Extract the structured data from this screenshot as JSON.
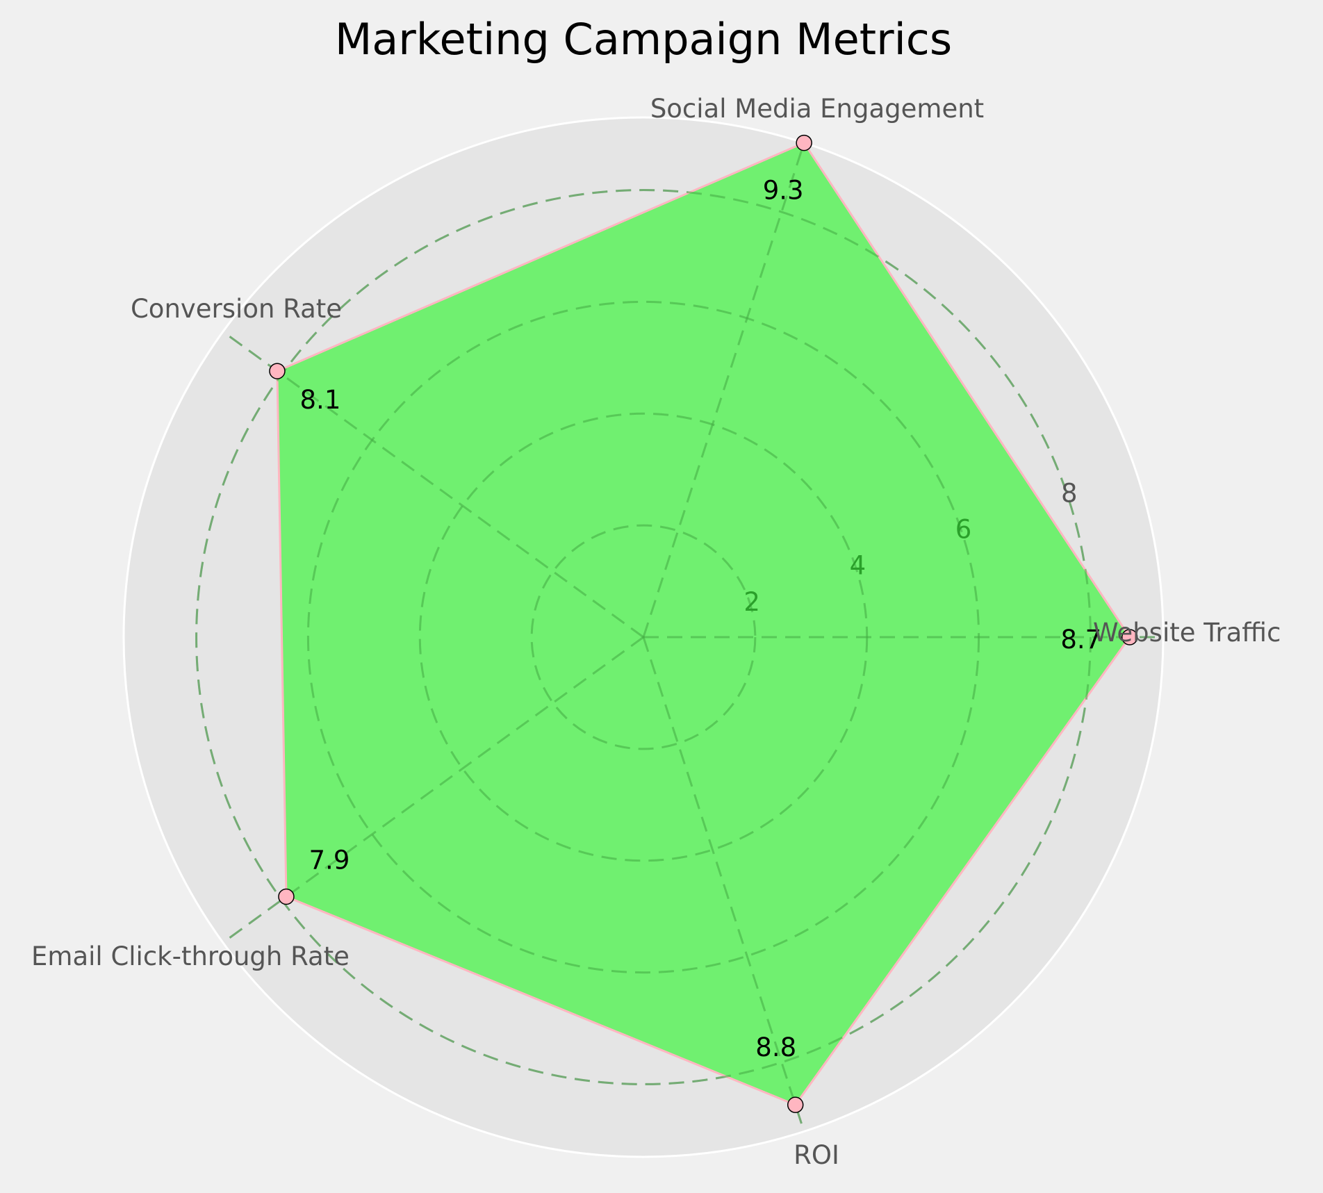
{
  "chart_data": {
    "type": "radar",
    "title": "Marketing Campaign Metrics",
    "categories": [
      "Website Traffic",
      "Social Media Engagement",
      "Conversion Rate",
      "Email Click-through Rate",
      "ROI"
    ],
    "series": [
      {
        "values": [
          8.7,
          9.3,
          8.1,
          7.9,
          8.8
        ]
      }
    ],
    "rlim": [
      0,
      9.3
    ],
    "rticks": [
      2,
      4,
      6,
      8
    ],
    "grid": true,
    "colors": {
      "background": "#f0f0f0",
      "plot_background": "#e5e5e5",
      "fill": "#70f070",
      "line": "#ffb6c1",
      "marker_face": "#ffb6c1",
      "marker_edge": "#000000",
      "grid": "#b0b0b0",
      "outer_ring": "#ffffff",
      "category_text": "#555555"
    }
  }
}
